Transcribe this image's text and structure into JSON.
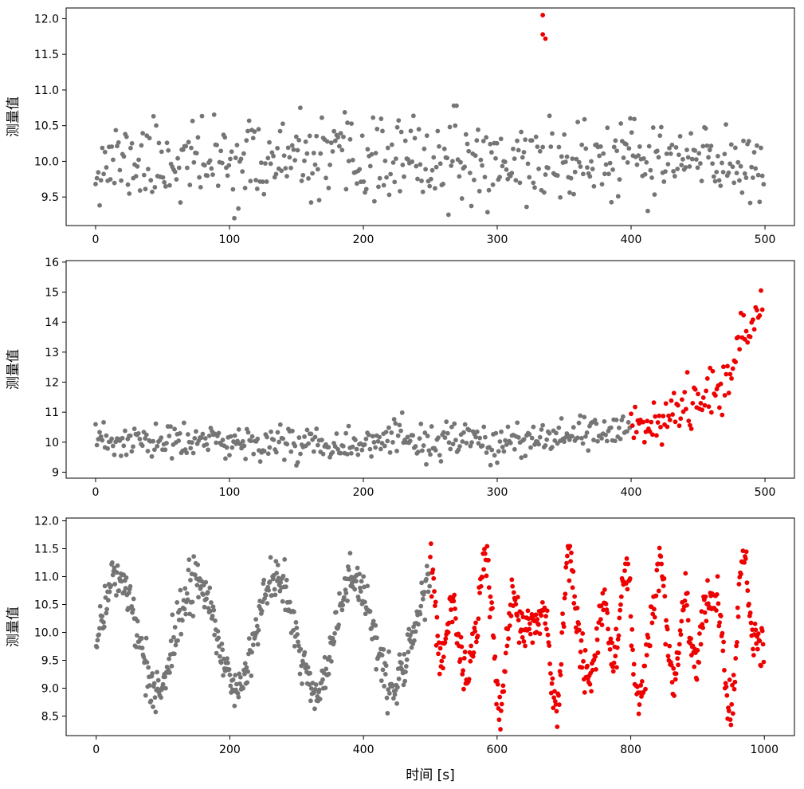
{
  "colors": {
    "normal": "#757575",
    "anomaly": "#ee0000"
  },
  "chart_data": [
    {
      "type": "scatter",
      "ylabel": "测量值",
      "xlabel": "",
      "xlim": [
        -22,
        522
      ],
      "ylim": [
        9.1,
        12.15
      ],
      "xticks": [
        0,
        100,
        200,
        300,
        400,
        500
      ],
      "yticks": [
        9.5,
        10.0,
        10.5,
        11.0,
        11.5,
        12.0
      ],
      "ytick_labels": [
        "9.5",
        "10.0",
        "10.5",
        "11.0",
        "11.5",
        "12.0"
      ],
      "grid": false,
      "series": [
        {
          "color": "#757575",
          "x_range": [
            0,
            499
          ],
          "n_points": 497,
          "pattern": "noise",
          "mean": 10.0,
          "spread": 0.28,
          "clip": [
            9.2,
            10.78
          ],
          "seed": 11
        },
        {
          "color": "#ee0000",
          "x": [
            334,
            334,
            336
          ],
          "y": [
            12.05,
            11.78,
            11.72
          ]
        }
      ]
    },
    {
      "type": "scatter",
      "ylabel": "测量值",
      "xlabel": "",
      "xlim": [
        -22,
        522
      ],
      "ylim": [
        8.8,
        16.05
      ],
      "xticks": [
        0,
        100,
        200,
        300,
        400,
        500
      ],
      "yticks": [
        9,
        10,
        11,
        12,
        13,
        14,
        15,
        16
      ],
      "ytick_labels": [
        "9",
        "10",
        "11",
        "12",
        "13",
        "14",
        "15",
        "16"
      ],
      "grid": false,
      "series": [
        {
          "color": "#757575",
          "x_range": [
            0,
            399
          ],
          "n_points": 400,
          "pattern": "drift",
          "mean": 10.0,
          "spread": 0.3,
          "drift_start": 340,
          "drift_end_value": 10.5,
          "seed": 23
        },
        {
          "color": "#ee0000",
          "x_range": [
            400,
            499
          ],
          "n_points": 100,
          "pattern": "exp-growth",
          "start_value": 10.6,
          "end_value": 15.2,
          "spread": 0.3,
          "seed": 37
        }
      ]
    },
    {
      "type": "scatter",
      "ylabel": "测量值",
      "xlabel": "时间 [s]",
      "xlim": [
        -45,
        1045
      ],
      "ylim": [
        8.15,
        12.05
      ],
      "xticks": [
        0,
        200,
        400,
        600,
        800,
        1000
      ],
      "yticks": [
        8.5,
        9.0,
        9.5,
        10.0,
        10.5,
        11.0,
        11.5,
        12.0
      ],
      "ytick_labels": [
        "8.5",
        "9.0",
        "9.5",
        "10.0",
        "10.5",
        "11.0",
        "11.5",
        "12.0"
      ],
      "grid": false,
      "series": [
        {
          "color": "#757575",
          "x_range": [
            0,
            499
          ],
          "n_points": 500,
          "pattern": "sine",
          "mean": 10.0,
          "amplitude": 1.0,
          "period": 118,
          "phase_peak_x": 32,
          "spread": 0.2,
          "seed": 41
        },
        {
          "color": "#ee0000",
          "x_range": [
            500,
            999
          ],
          "n_points": 500,
          "pattern": "irregular-oscillation",
          "mean": 10.0,
          "amplitude": 1.1,
          "spread": 0.2,
          "seed": 53
        }
      ]
    }
  ]
}
